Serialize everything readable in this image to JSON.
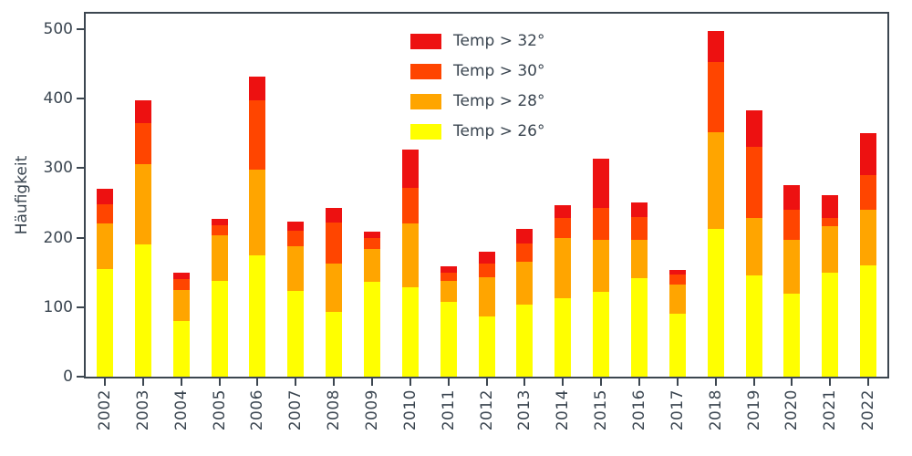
{
  "chart_data": {
    "type": "bar",
    "stacked": true,
    "title": "",
    "xlabel": "",
    "ylabel": "Häufigkeit",
    "ylim": [
      0,
      522
    ],
    "yticks": [
      0,
      100,
      200,
      300,
      400,
      500
    ],
    "grid": false,
    "categories": [
      "2002",
      "2003",
      "2004",
      "2005",
      "2006",
      "2007",
      "2008",
      "2009",
      "2010",
      "2011",
      "2012",
      "2013",
      "2014",
      "2015",
      "2016",
      "2017",
      "2018",
      "2019",
      "2020",
      "2021",
      "2022"
    ],
    "series": [
      {
        "name": "Temp > 26°",
        "color": "#ffff00",
        "values": [
          155,
          190,
          80,
          138,
          175,
          123,
          93,
          137,
          128,
          107,
          87,
          103,
          113,
          122,
          142,
          91,
          212,
          145,
          120,
          150,
          160
        ]
      },
      {
        "name": "Temp > 28°",
        "color": "#ffa500",
        "values": [
          65,
          115,
          45,
          65,
          123,
          65,
          70,
          46,
          92,
          31,
          56,
          62,
          87,
          75,
          55,
          42,
          140,
          83,
          77,
          67,
          80
        ]
      },
      {
        "name": "Temp > 30°",
        "color": "#ff4500",
        "values": [
          28,
          60,
          15,
          15,
          100,
          22,
          59,
          17,
          52,
          12,
          20,
          27,
          28,
          46,
          33,
          14,
          100,
          102,
          43,
          11,
          50
        ]
      },
      {
        "name": "Temp > 32°",
        "color": "#ed1111",
        "values": [
          22,
          32,
          10,
          9,
          34,
          13,
          21,
          8,
          54,
          9,
          17,
          20,
          19,
          71,
          21,
          7,
          45,
          53,
          35,
          33,
          60
        ]
      }
    ]
  },
  "legend": {
    "position": "upper center-left inside plot",
    "entries": [
      {
        "label": "Temp > 32°",
        "color": "#ed1111"
      },
      {
        "label": "Temp > 30°",
        "color": "#ff4500"
      },
      {
        "label": "Temp > 28°",
        "color": "#ffa500"
      },
      {
        "label": "Temp > 26°",
        "color": "#ffff00"
      }
    ]
  },
  "colors": {
    "text": "#3a4550",
    "spine": "#3c4650",
    "background": "#ffffff"
  }
}
